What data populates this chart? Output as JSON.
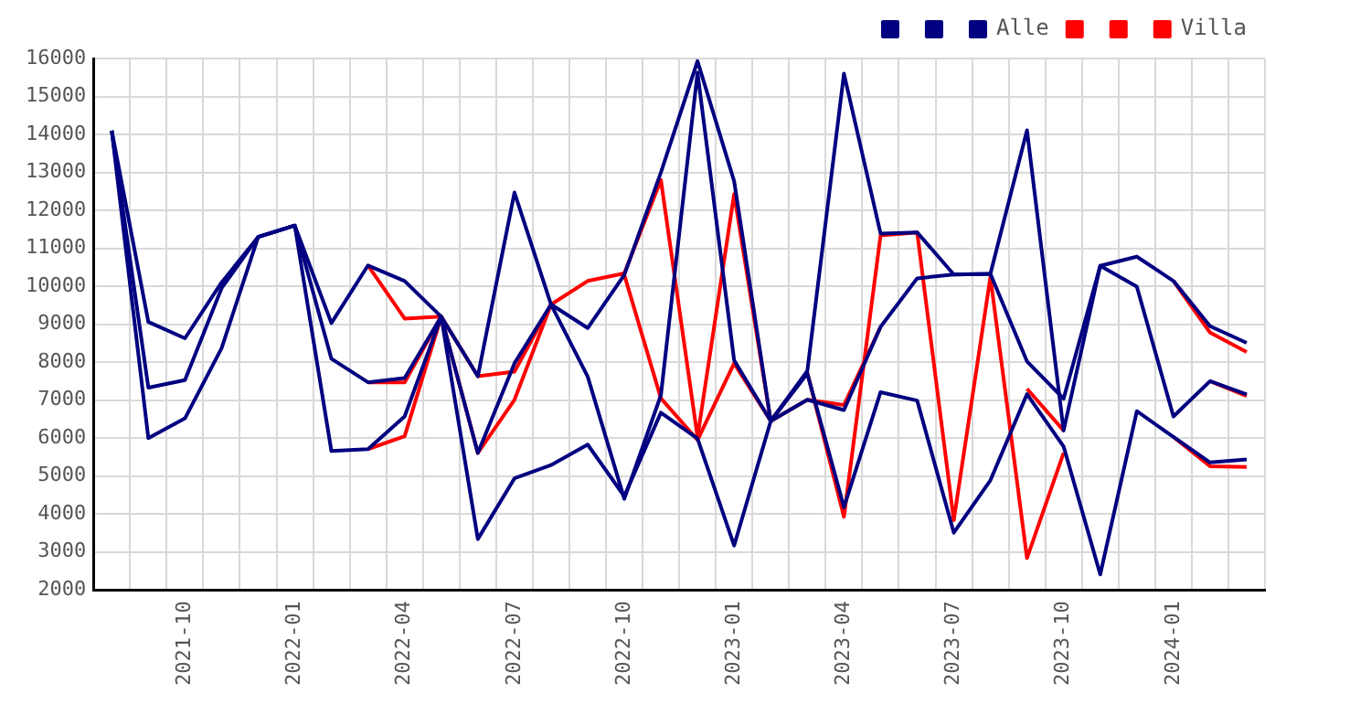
{
  "chart_data": {
    "type": "line",
    "categories": [
      null,
      null,
      "2021-10",
      null,
      null,
      "2022-01",
      null,
      null,
      "2022-04",
      null,
      null,
      "2022-07",
      null,
      null,
      "2022-10",
      null,
      null,
      "2023-01",
      null,
      null,
      "2023-04",
      null,
      null,
      "2023-07",
      null,
      null,
      "2023-10",
      null,
      null,
      "2024-01",
      null,
      null
    ],
    "series": [
      {
        "color": "#000080",
        "values": [
          14100,
          9060,
          8630,
          10100,
          11300,
          11600,
          9030,
          10550,
          10140,
          9200,
          7630,
          12470,
          9520,
          7620,
          4400,
          7130,
          15630,
          8050,
          6450,
          7770,
          15600,
          11390,
          11420,
          10310,
          10330,
          14110,
          6200,
          10540,
          10780,
          10140,
          8950,
          8510
        ]
      },
      {
        "color": "#000080",
        "values": [
          14100,
          7330,
          7530,
          9950,
          11300,
          11600,
          8090,
          7470,
          7580,
          9200,
          5610,
          7970,
          9520,
          8900,
          10300,
          13000,
          15930,
          12770,
          6450,
          7010,
          6740,
          8930,
          10210,
          10310,
          10330,
          8020,
          7040,
          10540,
          9990,
          6570,
          7500,
          7150
        ]
      },
      {
        "name": "Alle",
        "color": "#000080",
        "values": [
          14100,
          6000,
          6520,
          8370,
          11300,
          11600,
          5660,
          5710,
          6570,
          9200,
          3340,
          4940,
          5290,
          5830,
          4470,
          6670,
          5990,
          3170,
          6450,
          7700,
          4180,
          7210,
          6990,
          3510,
          4890,
          7160,
          5780,
          2410,
          6710,
          6030,
          5360,
          5440
        ]
      },
      {
        "color": "#ff0000",
        "values": [
          null,
          null,
          null,
          null,
          null,
          null,
          null,
          10550,
          9150,
          9200,
          7630,
          7750,
          9520,
          10140,
          10340,
          12800,
          6030,
          12430,
          6450,
          7720,
          3930,
          11340,
          11420,
          3840,
          10240,
          2840,
          5610,
          null,
          null,
          10140,
          8780,
          8270
        ]
      },
      {
        "color": "#ff0000",
        "values": [
          null,
          null,
          null,
          null,
          null,
          null,
          null,
          7470,
          7470,
          9200,
          5610,
          7010,
          9520,
          null,
          10300,
          7050,
          5950,
          7970,
          6450,
          7010,
          6870,
          8930,
          null,
          null,
          null,
          null,
          null,
          null,
          null,
          null,
          7500,
          7110
        ]
      },
      {
        "name": "Villa",
        "color": "#ff0000",
        "values": [
          null,
          null,
          null,
          null,
          null,
          null,
          null,
          5710,
          6050,
          9200,
          null,
          null,
          null,
          null,
          null,
          null,
          null,
          null,
          null,
          null,
          null,
          null,
          null,
          null,
          null,
          7300,
          6200,
          null,
          null,
          6030,
          5260,
          5240
        ]
      }
    ],
    "ylim": [
      2000,
      16000
    ],
    "yticks": [
      2000,
      3000,
      4000,
      5000,
      6000,
      7000,
      8000,
      9000,
      10000,
      11000,
      12000,
      13000,
      14000,
      15000,
      16000
    ],
    "grid": true,
    "legend": "top right",
    "marker": "none",
    "line_style": "solid"
  }
}
